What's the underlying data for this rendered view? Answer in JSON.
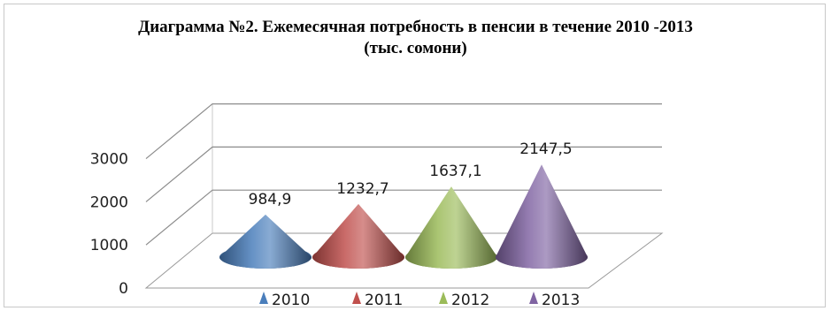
{
  "chart_data": {
    "type": "bar",
    "title": "Диаграмма №2. Ежемесячная потребность в пенсии в течение 2010 -2013",
    "subtitle": "(тыс. сомони)",
    "categories": [
      "2010",
      "2011",
      "2012",
      "2013"
    ],
    "values": [
      984.9,
      1232.7,
      1637.1,
      2147.5
    ],
    "value_labels": [
      "984,9",
      "1232,7",
      "1637,1",
      "2147,5"
    ],
    "colors": [
      "#4a7ebb",
      "#c0504d",
      "#9bbb59",
      "#8064a2"
    ],
    "y_ticks": [
      "0",
      "1000",
      "2000",
      "3000"
    ],
    "ylim": [
      0,
      3000
    ],
    "grid": true,
    "legend_position": "bottom",
    "style": "3d-cone"
  }
}
